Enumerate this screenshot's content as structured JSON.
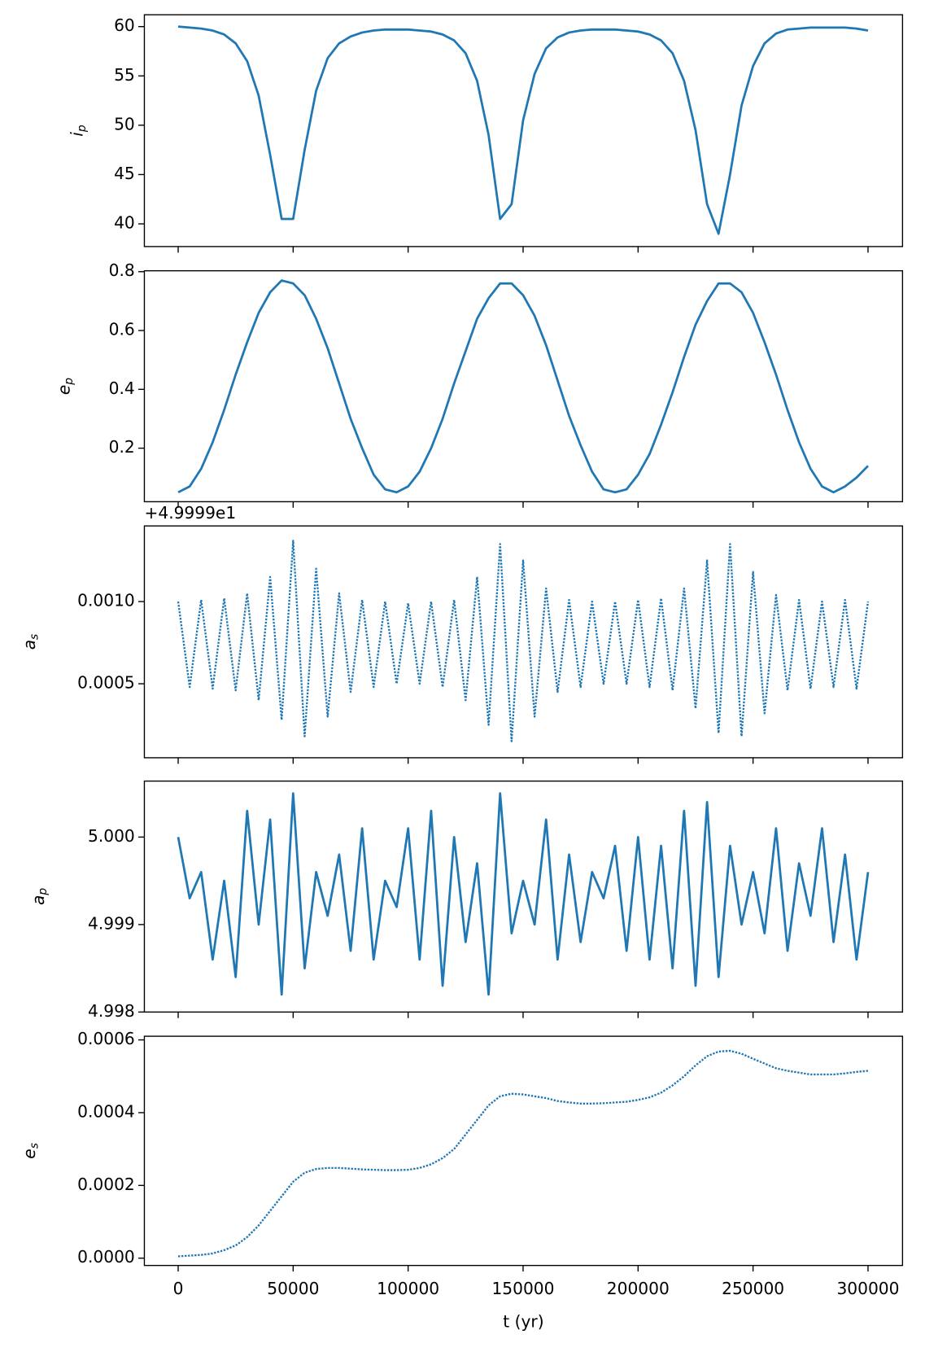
{
  "chart_data": [
    {
      "type": "line",
      "ylabel": [
        "i",
        "p"
      ],
      "color": "#1f77b4",
      "linestyle": "solid",
      "x": [
        0,
        5000,
        10000,
        15000,
        20000,
        25000,
        30000,
        35000,
        40000,
        45000,
        50000,
        55000,
        60000,
        65000,
        70000,
        75000,
        80000,
        85000,
        90000,
        95000,
        100000,
        105000,
        110000,
        115000,
        120000,
        125000,
        130000,
        135000,
        140000,
        145000,
        150000,
        155000,
        160000,
        165000,
        170000,
        175000,
        180000,
        185000,
        190000,
        195000,
        200000,
        205000,
        210000,
        215000,
        220000,
        225000,
        230000,
        235000,
        240000,
        245000,
        250000,
        255000,
        260000,
        265000,
        270000,
        275000,
        280000,
        285000,
        290000,
        295000,
        300000
      ],
      "values": [
        60,
        59.9,
        59.8,
        59.6,
        59.2,
        58.3,
        56.5,
        53,
        47,
        40.5,
        40.5,
        47.5,
        53.5,
        56.8,
        58.3,
        59,
        59.4,
        59.6,
        59.7,
        59.7,
        59.7,
        59.6,
        59.5,
        59.2,
        58.6,
        57.3,
        54.5,
        49,
        40.5,
        42,
        50.5,
        55.2,
        57.8,
        58.9,
        59.4,
        59.6,
        59.7,
        59.7,
        59.7,
        59.6,
        59.5,
        59.2,
        58.6,
        57.3,
        54.5,
        49.5,
        42,
        39,
        45,
        52,
        56,
        58.3,
        59.3,
        59.7,
        59.8,
        59.9,
        59.9,
        59.9,
        59.9,
        59.8,
        59.6
      ],
      "xlim": [
        -14700,
        315000
      ],
      "ylim": [
        37.7,
        61.2
      ],
      "yticks": [
        40,
        45,
        50,
        55,
        60
      ]
    },
    {
      "type": "line",
      "ylabel": [
        "e",
        "p"
      ],
      "color": "#1f77b4",
      "linestyle": "solid",
      "x": [
        0,
        5000,
        10000,
        15000,
        20000,
        25000,
        30000,
        35000,
        40000,
        45000,
        50000,
        55000,
        60000,
        65000,
        70000,
        75000,
        80000,
        85000,
        90000,
        95000,
        100000,
        105000,
        110000,
        115000,
        120000,
        125000,
        130000,
        135000,
        140000,
        145000,
        150000,
        155000,
        160000,
        165000,
        170000,
        175000,
        180000,
        185000,
        190000,
        195000,
        200000,
        205000,
        210000,
        215000,
        220000,
        225000,
        230000,
        235000,
        240000,
        245000,
        250000,
        255000,
        260000,
        265000,
        270000,
        275000,
        280000,
        285000,
        290000,
        295000,
        300000
      ],
      "values": [
        0.05,
        0.07,
        0.13,
        0.22,
        0.33,
        0.45,
        0.56,
        0.66,
        0.73,
        0.77,
        0.76,
        0.72,
        0.64,
        0.54,
        0.42,
        0.3,
        0.2,
        0.11,
        0.06,
        0.05,
        0.07,
        0.12,
        0.2,
        0.3,
        0.42,
        0.53,
        0.64,
        0.71,
        0.76,
        0.76,
        0.72,
        0.65,
        0.55,
        0.43,
        0.31,
        0.21,
        0.12,
        0.06,
        0.05,
        0.06,
        0.11,
        0.18,
        0.28,
        0.39,
        0.51,
        0.62,
        0.7,
        0.76,
        0.76,
        0.73,
        0.66,
        0.56,
        0.45,
        0.33,
        0.22,
        0.13,
        0.07,
        0.05,
        0.07,
        0.1,
        0.14
      ],
      "xlim": [
        -14700,
        315000
      ],
      "ylim": [
        0.018,
        0.803
      ],
      "yticks": [
        0.2,
        0.4,
        0.6,
        0.8
      ]
    },
    {
      "type": "line",
      "ylabel": [
        "a",
        "s"
      ],
      "offset_text": "+4.9999e1",
      "color": "#1f77b4",
      "linestyle": "dotted",
      "x": [
        0,
        5000,
        10000,
        15000,
        20000,
        25000,
        30000,
        35000,
        40000,
        45000,
        50000,
        55000,
        60000,
        65000,
        70000,
        75000,
        80000,
        85000,
        90000,
        95000,
        100000,
        105000,
        110000,
        115000,
        120000,
        125000,
        130000,
        135000,
        140000,
        145000,
        150000,
        155000,
        160000,
        165000,
        170000,
        175000,
        180000,
        185000,
        190000,
        195000,
        200000,
        205000,
        210000,
        215000,
        220000,
        225000,
        230000,
        235000,
        240000,
        245000,
        250000,
        255000,
        260000,
        265000,
        270000,
        275000,
        280000,
        285000,
        290000,
        295000,
        300000
      ],
      "values": [
        0.001,
        0.00048,
        0.00101,
        0.00047,
        0.00102,
        0.00046,
        0.00105,
        0.0004,
        0.00115,
        0.00028,
        0.00137,
        0.00018,
        0.0012,
        0.0003,
        0.00105,
        0.00045,
        0.00101,
        0.00048,
        0.001,
        0.0005,
        0.00099,
        0.0005,
        0.001,
        0.00048,
        0.00101,
        0.0004,
        0.00115,
        0.00025,
        0.00135,
        0.00015,
        0.00125,
        0.0003,
        0.00108,
        0.00045,
        0.00101,
        0.00048,
        0.001,
        0.0005,
        0.001,
        0.0005,
        0.00101,
        0.00048,
        0.00102,
        0.00046,
        0.00108,
        0.00035,
        0.00125,
        0.0002,
        0.00135,
        0.00018,
        0.00118,
        0.00032,
        0.00104,
        0.00046,
        0.00101,
        0.00047,
        0.001,
        0.00048,
        0.00101,
        0.00047,
        0.001
      ],
      "xlim": [
        -14700,
        315000
      ],
      "ylim": [
        5e-05,
        0.00146
      ],
      "yticks": [
        0.0005,
        {
          "value": 0.001,
          "label": "0.0010"
        }
      ]
    },
    {
      "type": "line",
      "ylabel": [
        "a",
        "p"
      ],
      "color": "#1f77b4",
      "linestyle": "solid",
      "x": [
        0,
        5000,
        10000,
        15000,
        20000,
        25000,
        30000,
        35000,
        40000,
        45000,
        50000,
        55000,
        60000,
        65000,
        70000,
        75000,
        80000,
        85000,
        90000,
        95000,
        100000,
        105000,
        110000,
        115000,
        120000,
        125000,
        130000,
        135000,
        140000,
        145000,
        150000,
        155000,
        160000,
        165000,
        170000,
        175000,
        180000,
        185000,
        190000,
        195000,
        200000,
        205000,
        210000,
        215000,
        220000,
        225000,
        230000,
        235000,
        240000,
        245000,
        250000,
        255000,
        260000,
        265000,
        270000,
        275000,
        280000,
        285000,
        290000,
        295000,
        300000
      ],
      "values": [
        5.0,
        4.9993,
        4.9996,
        4.9986,
        4.9995,
        4.9984,
        5.0003,
        4.999,
        5.0002,
        4.9982,
        5.0005,
        4.9985,
        4.9996,
        4.9991,
        4.9998,
        4.9987,
        5.0001,
        4.9986,
        4.9995,
        4.9992,
        5.0001,
        4.9986,
        5.0003,
        4.9983,
        5.0,
        4.9988,
        4.9997,
        4.9982,
        5.0005,
        4.9989,
        4.9995,
        4.999,
        5.0002,
        4.9986,
        4.9998,
        4.9988,
        4.9996,
        4.9993,
        4.9999,
        4.9987,
        5.0,
        4.9986,
        4.9999,
        4.9985,
        5.0003,
        4.9983,
        5.0004,
        4.9984,
        4.9999,
        4.999,
        4.9996,
        4.9989,
        5.0001,
        4.9987,
        4.9997,
        4.9991,
        5.0001,
        4.9988,
        4.9998,
        4.9986,
        4.9996
      ],
      "xlim": [
        -14700,
        315000
      ],
      "ylim": [
        4.998,
        5.00064
      ],
      "yticks": [
        4.998,
        4.999,
        {
          "value": 5.0,
          "label": "5.000"
        }
      ]
    },
    {
      "type": "line",
      "ylabel": [
        "e",
        "s"
      ],
      "xlabel": "t (yr)",
      "color": "#1f77b4",
      "linestyle": "dotted",
      "x": [
        0,
        5000,
        10000,
        15000,
        20000,
        25000,
        30000,
        35000,
        40000,
        45000,
        50000,
        55000,
        60000,
        65000,
        70000,
        75000,
        80000,
        85000,
        90000,
        95000,
        100000,
        105000,
        110000,
        115000,
        120000,
        125000,
        130000,
        135000,
        140000,
        145000,
        150000,
        155000,
        160000,
        165000,
        170000,
        175000,
        180000,
        185000,
        190000,
        195000,
        200000,
        205000,
        210000,
        215000,
        220000,
        225000,
        230000,
        235000,
        240000,
        245000,
        250000,
        255000,
        260000,
        265000,
        270000,
        275000,
        280000,
        285000,
        290000,
        295000,
        300000
      ],
      "values": [
        5e-06,
        7e-06,
        9e-06,
        1.3e-05,
        2.2e-05,
        3.5e-05,
        5.8e-05,
        9e-05,
        0.00013,
        0.00017,
        0.00021,
        0.000235,
        0.000245,
        0.000248,
        0.000248,
        0.000246,
        0.000244,
        0.000243,
        0.000242,
        0.000242,
        0.000243,
        0.000248,
        0.000258,
        0.000275,
        0.0003,
        0.00034,
        0.00038,
        0.00042,
        0.000445,
        0.000452,
        0.00045,
        0.000445,
        0.00044,
        0.000432,
        0.000428,
        0.000425,
        0.000425,
        0.000426,
        0.000428,
        0.00043,
        0.000435,
        0.000442,
        0.000455,
        0.000475,
        0.0005,
        0.00053,
        0.000555,
        0.000568,
        0.00057,
        0.000562,
        0.000548,
        0.000535,
        0.000522,
        0.000515,
        0.00051,
        0.000505,
        0.000505,
        0.000505,
        0.000508,
        0.000512,
        0.000515
      ],
      "xlim": [
        -14700,
        315000
      ],
      "ylim": [
        -2e-05,
        0.00061
      ],
      "yticks": [
        {
          "value": 0,
          "label": "0.0000"
        },
        {
          "value": 0.0002,
          "label": "0.0002"
        },
        {
          "value": 0.0004,
          "label": "0.0004"
        },
        {
          "value": 0.0006,
          "label": "0.0006"
        }
      ],
      "xticks": [
        0,
        50000,
        100000,
        150000,
        200000,
        250000,
        300000
      ]
    }
  ]
}
